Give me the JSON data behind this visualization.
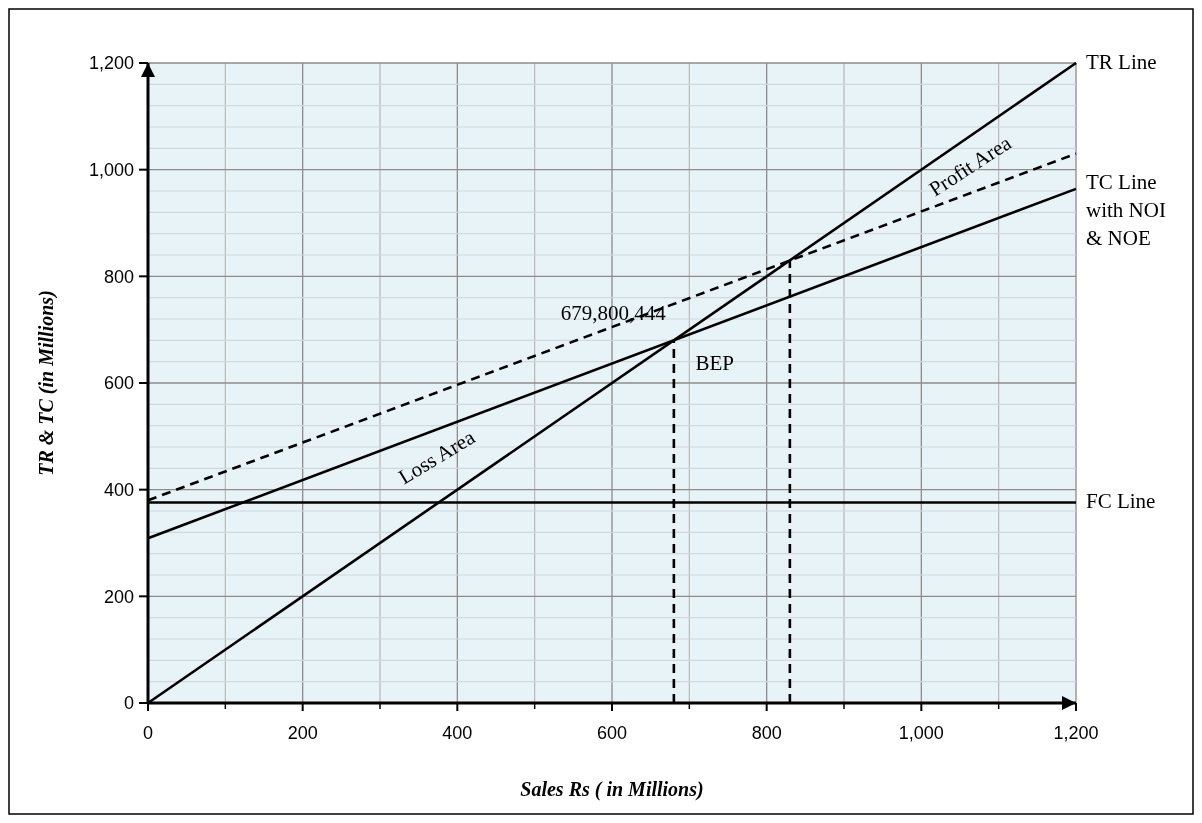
{
  "chart_data": {
    "type": "line",
    "xlabel": "Sales Rs ( in Millions)",
    "ylabel": "TR & TC (in Millions)",
    "xlim": [
      0,
      1200
    ],
    "ylim": [
      0,
      1200
    ],
    "xticks": [
      0,
      200,
      400,
      600,
      800,
      {
        "value": 1000,
        "label": "1,000"
      },
      {
        "value": 1200,
        "label": "1,200"
      }
    ],
    "yticks": [
      0,
      200,
      400,
      600,
      800,
      {
        "value": 1000,
        "label": "1,000"
      },
      {
        "value": 1200,
        "label": "1,200"
      }
    ],
    "grid": true,
    "series": [
      {
        "name": "TR Line",
        "color": "#000000",
        "x": [
          0,
          1200
        ],
        "values": [
          0,
          1200
        ],
        "line_style": "solid"
      },
      {
        "name": "TC Line with NOI & NOE",
        "color": "#000000",
        "x": [
          0,
          1200
        ],
        "values": [
          309,
          964
        ],
        "line_style": "solid"
      },
      {
        "color": "#000000",
        "x": [
          0,
          1200
        ],
        "values": [
          380,
          1030
        ],
        "line_style": "dashed"
      },
      {
        "name": "FC Line",
        "color": "#000000",
        "x": [
          0,
          1200
        ],
        "values": [
          376,
          376
        ],
        "line_style": "solid"
      },
      {
        "color": "#000000",
        "x": [
          680,
          680
        ],
        "values": [
          0,
          680
        ],
        "line_style": "dashed"
      },
      {
        "color": "#000000",
        "x": [
          830,
          830
        ],
        "values": [
          0,
          830
        ],
        "line_style": "dashed"
      }
    ],
    "annotations": [
      {
        "text": "679,800,444",
        "x": 680,
        "y": 680
      },
      "BEP",
      "Loss Area",
      "Profit Area"
    ]
  }
}
